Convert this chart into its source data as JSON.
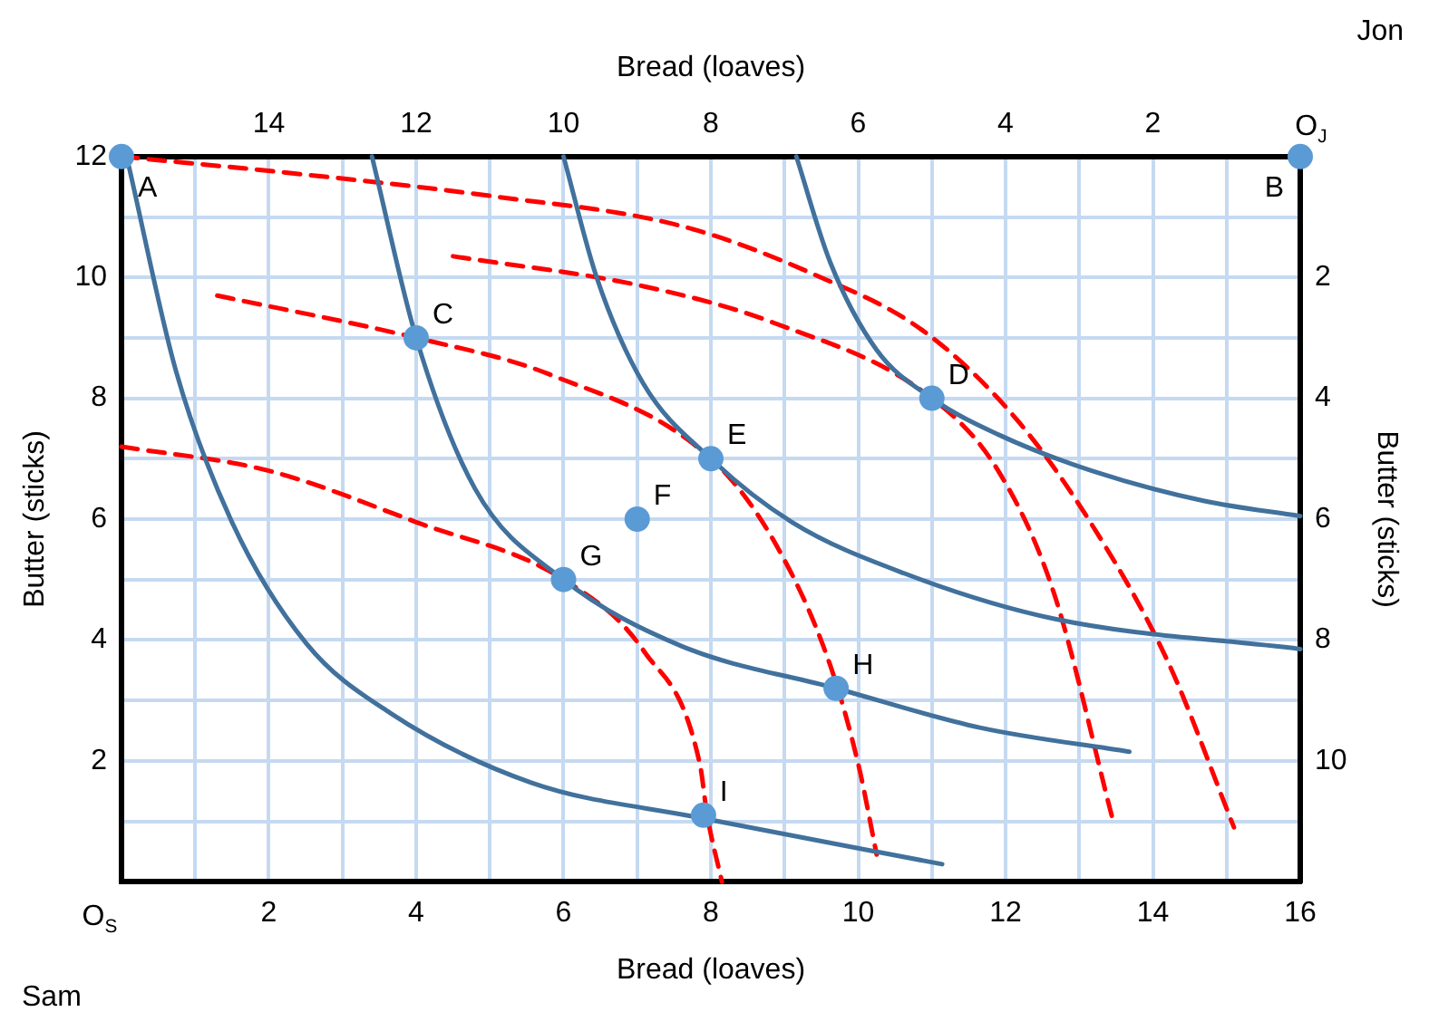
{
  "chart_data": {
    "type": "line",
    "xlabel": "Bread (loaves)",
    "x2label": "Bread (loaves)",
    "ylabel": "Butter (sticks)",
    "y2label": "Butter (sticks)",
    "xlim": [
      0,
      16
    ],
    "xticks": [
      {
        "value": 0,
        "label": "O$_{S}$"
      },
      {
        "value": 1,
        "label": null
      },
      2,
      {
        "value": 3,
        "label": null
      },
      4,
      {
        "value": 5,
        "label": null
      },
      6,
      {
        "value": 7,
        "label": null
      },
      8,
      {
        "value": 9,
        "label": null
      },
      10,
      {
        "value": 11,
        "label": null
      },
      12,
      {
        "value": 13,
        "label": null
      },
      14,
      {
        "value": 15,
        "label": null
      },
      16
    ],
    "x2lim": [
      16,
      0
    ],
    "x2ticks": [
      14,
      12,
      10,
      8,
      6,
      4,
      2,
      {
        "value": 0,
        "label": "O$_{J}$"
      }
    ],
    "ylim": [
      0,
      12
    ],
    "yticks": [
      {
        "value": 1,
        "label": null
      },
      2,
      {
        "value": 3,
        "label": null
      },
      4,
      {
        "value": 5,
        "label": null
      },
      6,
      {
        "value": 7,
        "label": null
      },
      8,
      {
        "value": 9,
        "label": null
      },
      10,
      {
        "value": 11,
        "label": null
      },
      12
    ],
    "y2lim": [
      12,
      0
    ],
    "y2ticks": [
      2,
      4,
      6,
      8,
      10
    ],
    "grid": true,
    "legend": false,
    "series": [
      {
        "type": "line",
        "color": "#41719c",
        "line_style": "solid",
        "marker": "none",
        "x": [
          0.1,
          0.74,
          1.5,
          2.51,
          3.65,
          5.56,
          7.84,
          11.14
        ],
        "values": [
          11.84,
          8.45,
          5.95,
          3.94,
          2.79,
          1.64,
          1.06,
          0.29
        ]
      },
      {
        "type": "line",
        "color": "#41719c",
        "line_style": "solid",
        "marker": "none",
        "x": [
          3.4,
          4,
          4.8,
          6,
          7.6,
          9.7,
          11.65,
          13.68
        ],
        "values": [
          12,
          9,
          6.5,
          5,
          3.9,
          3.2,
          2.55,
          2.15
        ]
      },
      {
        "type": "line",
        "color": "#41719c",
        "line_style": "solid",
        "marker": "none",
        "x": [
          6,
          6.45,
          7.08,
          8,
          9.1,
          10.63,
          12.66,
          16
        ],
        "values": [
          12,
          10,
          8.25,
          7,
          5.95,
          5.1,
          4.35,
          3.85
        ]
      },
      {
        "type": "line",
        "color": "#41719c",
        "line_style": "solid",
        "marker": "none",
        "x": [
          9.16,
          9.62,
          10.25,
          11,
          11.9,
          13.17,
          14.7,
          16
        ],
        "values": [
          12,
          10.25,
          8.8,
          8,
          7.4,
          6.8,
          6.3,
          6.05
        ]
      },
      {
        "type": "line",
        "color": "#ff0000",
        "line_style": "dashed",
        "marker": "none",
        "x": [
          0,
          2.5,
          5,
          7.6,
          9.4,
          10.9,
          12.15,
          13.15,
          14.2,
          15.1
        ],
        "values": [
          12,
          11.7,
          11.35,
          10.85,
          10.05,
          9.1,
          7.65,
          5.95,
          3.65,
          0.9
        ]
      },
      {
        "type": "line",
        "color": "#ff0000",
        "line_style": "dashed",
        "marker": "none",
        "x": [
          4.5,
          7.1,
          8.85,
          11,
          11.9,
          12.65,
          13.45
        ],
        "values": [
          10.35,
          9.85,
          9.25,
          8,
          6.8,
          4.8,
          1.05
        ]
      },
      {
        "type": "line",
        "color": "#ff0000",
        "line_style": "dashed",
        "marker": "none",
        "x": [
          1.3,
          4,
          5.8,
          8,
          8.85,
          9.6,
          10,
          10.25
        ],
        "values": [
          9.7,
          9,
          8.4,
          7,
          5.65,
          3.65,
          1.95,
          0.45
        ]
      },
      {
        "type": "line",
        "color": "#ff0000",
        "line_style": "dashed",
        "marker": "none",
        "x": [
          0,
          2,
          4,
          6,
          7.1,
          7.85,
          7.95,
          8.15
        ],
        "values": [
          7.2,
          6.8,
          5.95,
          5,
          3.8,
          1.95,
          1.1,
          0
        ]
      },
      {
        "type": "scatter",
        "color": "#5b9bd5",
        "marker": "circle",
        "x": [
          0,
          16,
          4,
          11,
          8,
          7,
          6,
          9.7,
          7.9
        ],
        "values": [
          12,
          12,
          9,
          8,
          7,
          6,
          5,
          3.2,
          1.1
        ]
      }
    ],
    "annotations": [
      {
        "text": "A",
        "x": 0,
        "y": 12
      },
      {
        "text": "B",
        "x": 16,
        "y": 12
      },
      {
        "text": "C",
        "x": 4,
        "y": 9
      },
      {
        "text": "D",
        "x": 11,
        "y": 8
      },
      {
        "text": "E",
        "x": 8,
        "y": 7
      },
      {
        "text": "F",
        "x": 7,
        "y": 6
      },
      {
        "text": "G",
        "x": 6,
        "y": 5
      },
      {
        "text": "H",
        "x": 9.7,
        "y": 3.2
      },
      {
        "text": "I",
        "x": 7.9,
        "y": 1.1
      },
      "Sam",
      "Jon"
    ]
  }
}
